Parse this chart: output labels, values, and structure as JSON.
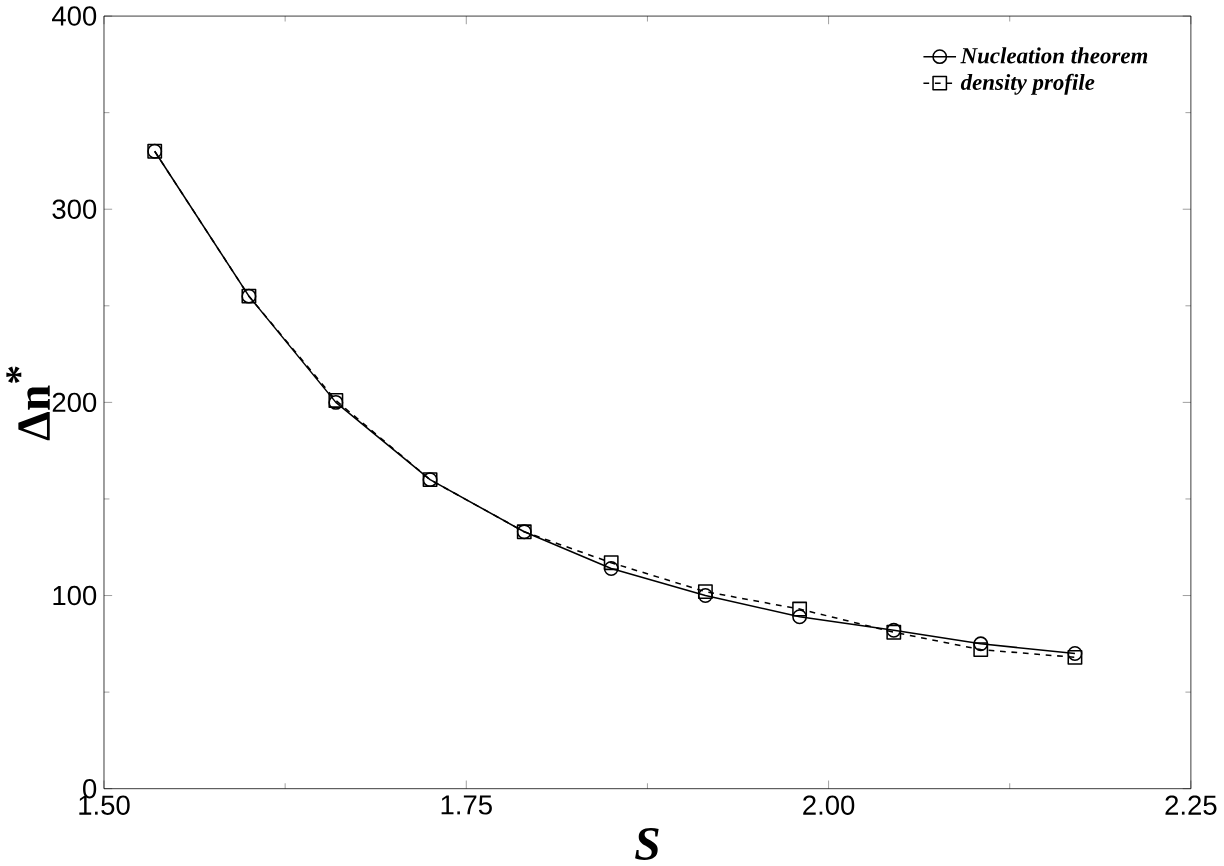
{
  "chart_data": {
    "type": "line",
    "xlabel": "*S*",
    "ylabel": "Δn$^{*}$",
    "x": [
      1.535,
      1.6,
      1.66,
      1.725,
      1.79,
      1.85,
      1.915,
      1.98,
      2.045,
      2.105,
      2.17
    ],
    "series": [
      {
        "name": "Nucleation theorem",
        "color": "#000000",
        "marker": "circle",
        "line_style": "solid",
        "values": [
          330,
          255,
          200,
          160,
          133,
          114,
          100,
          89,
          82,
          75,
          70
        ]
      },
      {
        "name": "density profile",
        "color": "#000000",
        "marker": "square",
        "line_style": "dashed",
        "values": [
          330,
          255,
          201,
          160,
          133,
          117,
          102,
          93,
          81,
          72,
          68
        ]
      }
    ],
    "xlim": [
      1.5,
      2.25
    ],
    "xticks": [
      {
        "value": 1.5,
        "label": "1.50"
      },
      {
        "value": 1.75,
        "label": "1.75"
      },
      {
        "value": 2.0,
        "label": "2.00"
      },
      {
        "value": 2.25,
        "label": "2.25"
      }
    ],
    "ylim": [
      0,
      400
    ],
    "yticks": [
      0,
      100,
      200,
      300,
      400
    ],
    "grid": false,
    "legend": "top right"
  }
}
